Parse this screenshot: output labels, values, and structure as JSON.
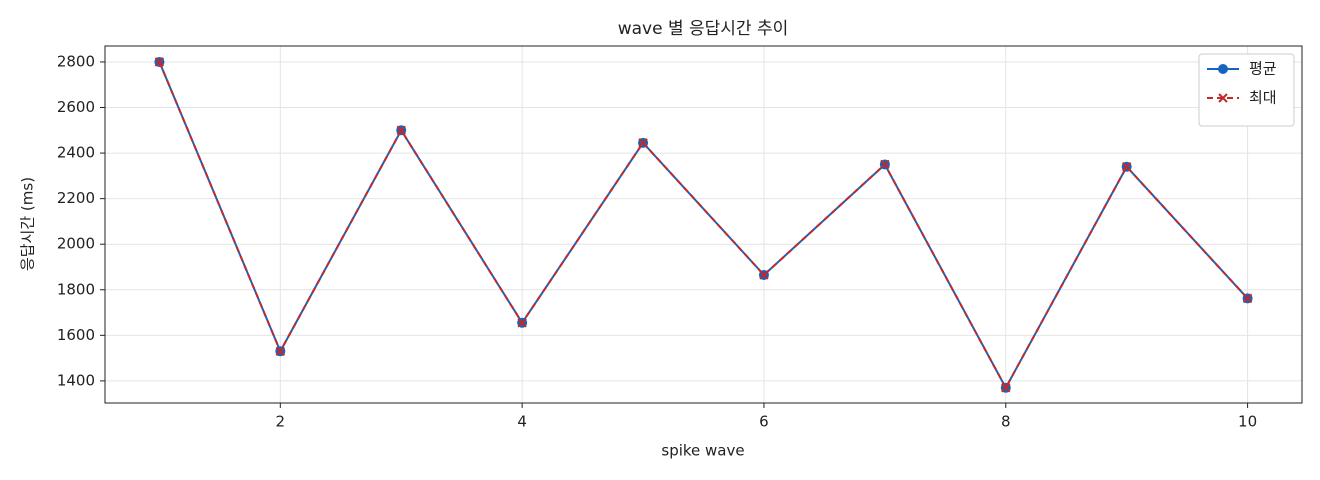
{
  "chart_data": {
    "type": "line",
    "title": "wave 별 응답시간 추이",
    "x_label": "spike wave",
    "y_label": "응답시간 (ms)",
    "x": [
      1,
      2,
      3,
      4,
      5,
      6,
      7,
      8,
      9,
      10
    ],
    "series": [
      {
        "name": "평균",
        "color": "#1565c0",
        "marker": "o",
        "dash": false,
        "values": [
          2800,
          1530,
          2500,
          1655,
          2445,
          1865,
          2350,
          1370,
          2340,
          1762
        ]
      },
      {
        "name": "최대",
        "color": "#c62828",
        "marker": "x",
        "dash": true,
        "values": [
          2800,
          1530,
          2500,
          1655,
          2445,
          1865,
          2350,
          1370,
          2340,
          1762
        ]
      }
    ],
    "xlim": [
      0.55,
      10.45
    ],
    "xticks": [
      2,
      4,
      6,
      8,
      10
    ],
    "ylim": [
      1303,
      2870
    ],
    "yticks": [
      1400,
      1600,
      1800,
      2000,
      2200,
      2400,
      2600,
      2800
    ],
    "grid": true,
    "legend": "upper right"
  }
}
